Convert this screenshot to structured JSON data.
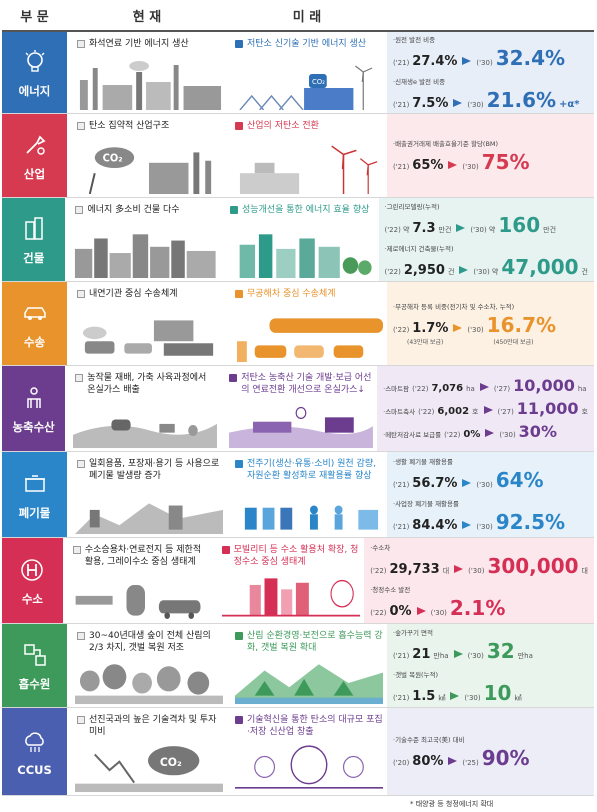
{
  "header": {
    "sector": "부 문",
    "current": "현 재",
    "future": "미 래"
  },
  "colors": {
    "energy": "#2f6fb5",
    "industry": "#d63a50",
    "building": "#2e9a8a",
    "transport": "#e8932c",
    "agri": "#6c3d8f",
    "waste": "#2a86c8",
    "hydrogen": "#d62f55",
    "sink": "#3d9a5a",
    "ccus": "#4a5fb0"
  },
  "rows": [
    {
      "name": "에너지",
      "cur": "화석연료 기반 에너지 생산",
      "fut": "저탄소 신기술 기반 에너지 생산",
      "ind": [
        {
          "label": "·원전 발전 비중",
          "y1": "('21)",
          "v1": "27.4%",
          "y2": "('30)",
          "v2": "32.4%",
          "suf": ""
        },
        {
          "label": "·신재생e 발전 비중",
          "y1": "('21)",
          "v1": "7.5%",
          "y2": "('30)",
          "v2": "21.6%",
          "suf": "+α*"
        }
      ]
    },
    {
      "name": "산업",
      "cur": "탄소 집약적 산업구조",
      "fut": "산업의 저탄소 전환",
      "ind": [
        {
          "label": "·배출권거래제 배출효율기준 할당(BM)",
          "y1": "('21)",
          "v1": "65%",
          "y2": "('30)",
          "v2": "75%",
          "suf": ""
        }
      ]
    },
    {
      "name": "건물",
      "cur": "에너지 多소비 건물 다수",
      "fut": "성능개선을 통한 에너지 효율 향상",
      "ind": [
        {
          "label": "·그린리모델링(누적)",
          "y1": "('22) 약",
          "v1": "7.3",
          "u1": "만건",
          "y2": "('30) 약",
          "v2": "160",
          "u2": "만건"
        },
        {
          "label": "·제로에너지 건축물(누적)",
          "y1": "('22)",
          "v1": "2,950",
          "u1": "건",
          "y2": "('30) 약",
          "v2": "47,000",
          "u2": "건"
        }
      ]
    },
    {
      "name": "수송",
      "cur": "내연기관 중심 수송체계",
      "fut": "무공해차 중심 수송체계",
      "ind": [
        {
          "label": "·무공해차 등록 비중(전기차 및 수소차, 누적)",
          "y1": "('22)",
          "v1": "1.7%",
          "s1": "(43만대 보급)",
          "y2": "('30)",
          "v2": "16.7%",
          "s2": "(450만대 보급)"
        }
      ]
    },
    {
      "name": "농축수산",
      "cur": "농작물 재배, 가축 사육과정에서 온실가스 배출",
      "fut": "저탄소 농축산 기술 개발·보급 어선의 연료전환 개선으로 온실가스↓",
      "ind": [
        {
          "label": "·스마트팜",
          "y1": "('22)",
          "v1": "7,076",
          "u1": "ha",
          "y2": "('27)",
          "v2": "10,000",
          "u2": "ha"
        },
        {
          "label": "·스마트축사",
          "y1": "('22)",
          "v1": "6,002",
          "u1": "호",
          "y2": "('27)",
          "v2": "11,000",
          "u2": "호"
        },
        {
          "label": "·메탄저감사료 보급률",
          "y1": "('22)",
          "v1": "0%",
          "y2": "('30)",
          "v2": "30%"
        }
      ]
    },
    {
      "name": "폐기물",
      "cur": "일회용품, 포장재·용기 등 사용으로 폐기물 발생량 증가",
      "fut": "전주기(생산·유통·소비) 원천 감량, 자원순환 활성화로 재활용률 향상",
      "ind": [
        {
          "label": "·생활 폐기물 재활용률",
          "y1": "('21)",
          "v1": "56.7%",
          "y2": "('30)",
          "v2": "64%"
        },
        {
          "label": "·사업장 폐기물 재활용률",
          "y1": "('21)",
          "v1": "84.4%",
          "y2": "('30)",
          "v2": "92.5%"
        }
      ]
    },
    {
      "name": "수소",
      "cur": "수소승용차·연료전지 등 제한적 활용, 그레이수소 중심 생태계",
      "fut": "모빌리티 등 수소 활용처 확장, 청정수소 중심 생태계",
      "ind": [
        {
          "label": "·수소차",
          "y1": "('22)",
          "v1": "29,733",
          "u1": "대",
          "y2": "('30)",
          "v2": "300,000",
          "u2": "대"
        },
        {
          "label": "·청정수소 발전",
          "y1": "('22)",
          "v1": "0%",
          "y2": "('30)",
          "v2": "2.1%"
        }
      ]
    },
    {
      "name": "흡수원",
      "cur": "30~40년대생 숲이 전체 산림의 2/3 차지, 갯벌 복원 저조",
      "fut": "산림 순환경영·보전으로 흡수능력 강화, 갯벌 복원 확대",
      "ind": [
        {
          "label": "·숲가꾸기 면적",
          "y1": "('21)",
          "v1": "21",
          "u1": "만ha",
          "y2": "('30)",
          "v2": "32",
          "u2": "만ha"
        },
        {
          "label": "·갯벌 복원(누적)",
          "y1": "('21)",
          "v1": "1.5",
          "u1": "㎢",
          "y2": "('30)",
          "v2": "10",
          "u2": "㎢"
        }
      ]
    },
    {
      "name": "CCUS",
      "cur": "선진국과의 높은 기술격차 및 투자 미비",
      "fut": "기술혁신을 통한 탄소의 대규모 포집·저장 신산업 창출",
      "ind": [
        {
          "label": "·기술수준 최고국(美) 대비",
          "y1": "('20)",
          "v1": "80%",
          "y2": "('25)",
          "v2": "90%"
        }
      ]
    }
  ],
  "footnote": "* 태양광 등 청정에너지 확대"
}
